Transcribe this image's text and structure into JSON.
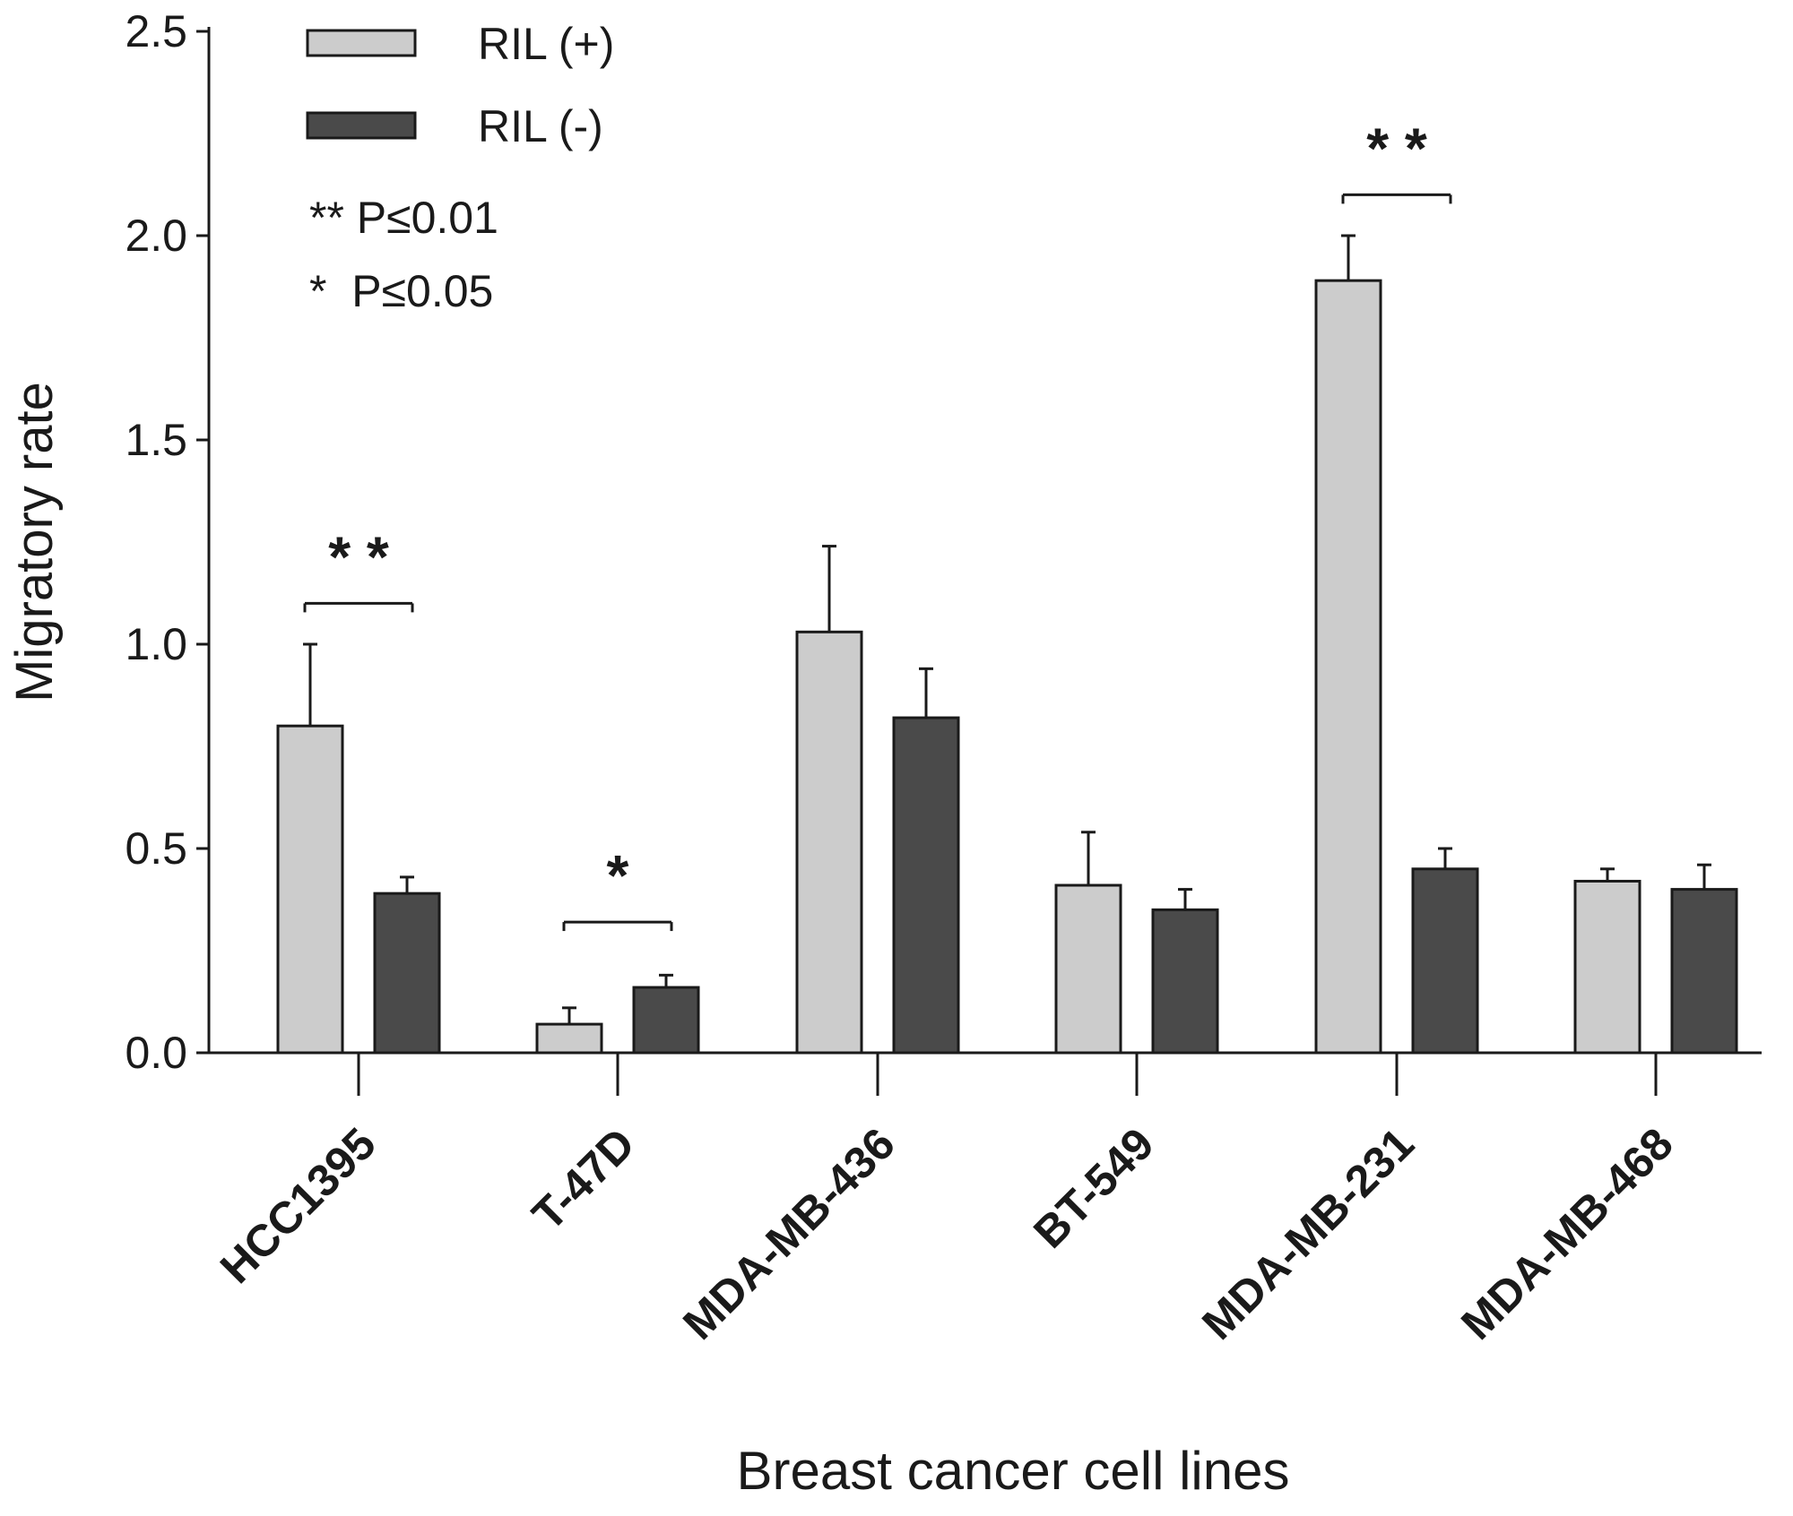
{
  "chart_data": {
    "type": "bar",
    "title": "",
    "xlabel": "Breast cancer cell lines",
    "ylabel": "Migratory rate",
    "ylim": [
      0,
      2.5
    ],
    "yticks": [
      "0.0",
      "0.5",
      "1.0",
      "1.5",
      "2.0",
      "2.5"
    ],
    "categories": [
      "HCC1395",
      "T-47D",
      "MDA-MB-436",
      "BT-549",
      "MDA-MB-231",
      "MDA-MB-468"
    ],
    "series": [
      {
        "name": "RIL (+)",
        "color": "#cccccc",
        "values": [
          0.8,
          0.07,
          1.03,
          0.41,
          1.89,
          0.42
        ],
        "errors": [
          0.2,
          0.04,
          0.21,
          0.13,
          0.11,
          0.03
        ]
      },
      {
        "name": "RIL (-)",
        "color": "#4a4a4a",
        "values": [
          0.39,
          0.16,
          0.82,
          0.35,
          0.45,
          0.4
        ],
        "errors": [
          0.04,
          0.03,
          0.12,
          0.05,
          0.05,
          0.06
        ]
      }
    ],
    "significance": [
      {
        "category_index": 0,
        "label": "* *",
        "y": 1.1
      },
      {
        "category_index": 1,
        "label": "*",
        "y": 0.32
      },
      {
        "category_index": 4,
        "label": "* *",
        "y": 2.1
      }
    ],
    "notes": [
      "** P≤0.01",
      "*  P≤0.05"
    ],
    "legend_position": "top-left"
  }
}
